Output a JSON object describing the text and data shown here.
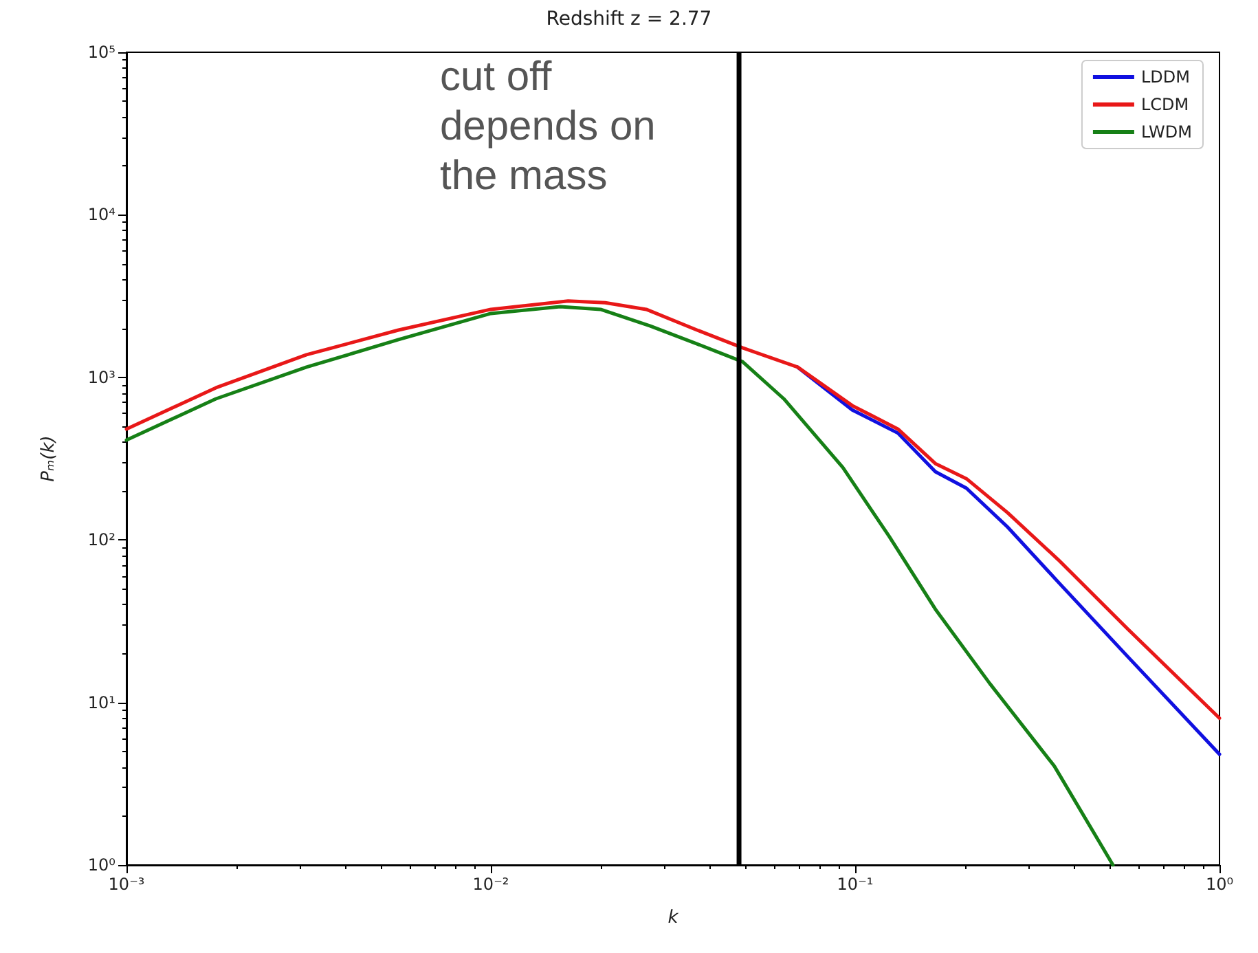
{
  "chart_data": {
    "type": "line",
    "title": "Redshift z = 2.77",
    "xlabel": "k",
    "ylabel": "Pₘ(k)",
    "log": "xy",
    "xlim": [
      0.001,
      1
    ],
    "ylim": [
      1,
      100000
    ],
    "xticks": [
      {
        "value": 0.001,
        "label": "10⁻³"
      },
      {
        "value": 0.01,
        "label": "10⁻²"
      },
      {
        "value": 0.1,
        "label": "10⁻¹"
      },
      {
        "value": 1,
        "label": "10⁰"
      }
    ],
    "yticks": [
      {
        "value": 1,
        "label": "10⁰"
      },
      {
        "value": 10,
        "label": "10¹"
      },
      {
        "value": 100,
        "label": "10²"
      },
      {
        "value": 1000,
        "label": "10³"
      },
      {
        "value": 10000,
        "label": "10⁴"
      },
      {
        "value": 100000,
        "label": "10⁵"
      }
    ],
    "grid": false,
    "legend": "top right",
    "marker": "none",
    "line_style": "solid",
    "series": [
      {
        "name": "LDDM",
        "color": "#1010e0",
        "x": [
          0.0695,
          0.0982,
          0.131,
          0.166,
          0.202,
          0.262,
          0.361,
          0.558,
          1
        ],
        "values": [
          1156,
          630,
          454,
          263,
          208,
          120,
          55,
          19.3,
          4.8
        ]
      },
      {
        "name": "LCDM",
        "color": "#e81818",
        "x": [
          0.001,
          0.00176,
          0.00312,
          0.00558,
          0.01,
          0.0163,
          0.0206,
          0.0267,
          0.0368,
          0.0491,
          0.0695,
          0.0982,
          0.131,
          0.166,
          0.202,
          0.262,
          0.361,
          0.558,
          1
        ],
        "values": [
          481,
          863,
          1377,
          1955,
          2620,
          2950,
          2880,
          2620,
          1955,
          1518,
          1156,
          670,
          481,
          295,
          238,
          147,
          75.5,
          28.5,
          8
        ]
      },
      {
        "name": "LWDM",
        "color": "#168016",
        "x": [
          0.001,
          0.00176,
          0.00312,
          0.00558,
          0.01,
          0.0155,
          0.02,
          0.0274,
          0.0368,
          0.0491,
          0.0637,
          0.0925,
          0.124,
          0.166,
          0.234,
          0.352,
          0.51
        ],
        "values": [
          411,
          738,
          1156,
          1706,
          2470,
          2720,
          2620,
          2070,
          1607,
          1248,
          738,
          279,
          105,
          37.5,
          13.1,
          4.06,
          1
        ]
      }
    ],
    "ref_lines": [
      {
        "axis": "x",
        "value": 0.048,
        "color": "#000000"
      }
    ],
    "annotations": [
      "cut off depends on the mass"
    ]
  }
}
